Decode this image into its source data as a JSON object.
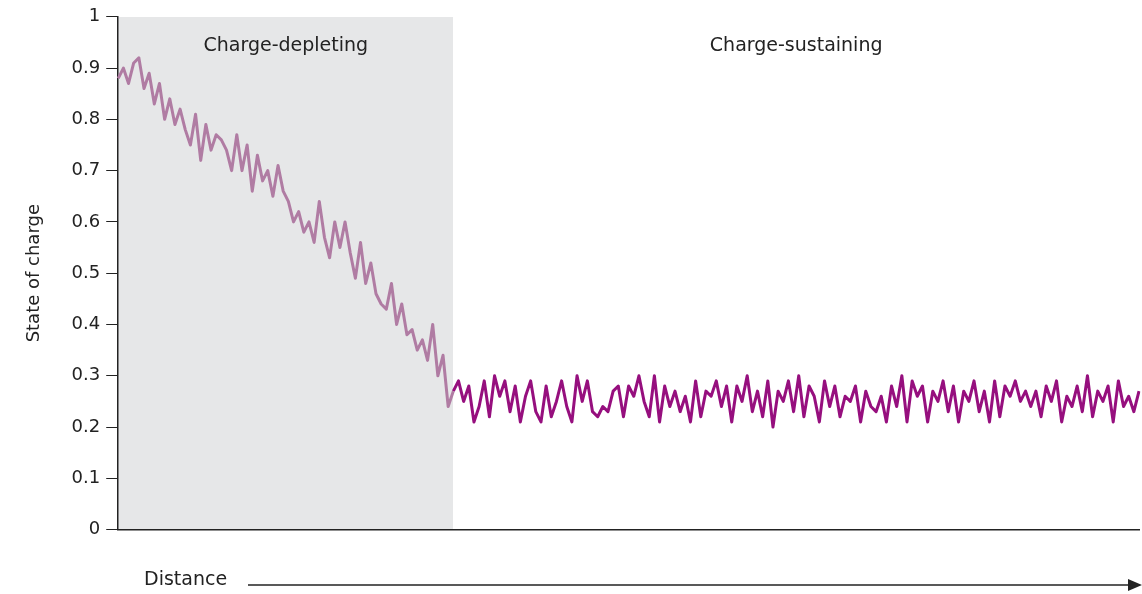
{
  "chart_data": {
    "type": "line",
    "ylabel": "State of charge",
    "xlabel": "Distance",
    "ylim": [
      0,
      1
    ],
    "yticks": [
      0,
      0.1,
      0.2,
      0.3,
      0.4,
      0.5,
      0.6,
      0.7,
      0.8,
      0.9,
      1
    ],
    "grid": false,
    "legend": false,
    "marker": "none",
    "line_style": "solid",
    "categories": [
      null,
      null,
      null,
      null,
      null,
      null,
      null,
      null,
      null,
      null,
      null,
      null,
      null,
      null,
      null,
      null,
      null,
      null,
      null,
      null,
      null,
      null,
      null,
      null,
      null,
      null,
      null,
      null,
      null,
      null,
      null,
      null,
      null,
      null,
      null,
      null,
      null,
      null,
      null,
      null,
      null,
      null,
      null,
      null,
      null,
      null,
      null,
      null,
      null,
      null,
      null,
      null,
      null,
      null,
      null,
      null,
      null,
      null,
      null,
      null,
      null,
      null,
      null,
      null,
      null,
      null,
      null,
      null,
      null,
      null,
      null,
      null,
      null,
      null,
      null,
      null,
      null,
      null,
      null,
      null,
      null,
      null,
      null,
      null,
      null,
      null,
      null,
      null,
      null,
      null,
      null,
      null,
      null,
      null,
      null,
      null,
      null,
      null,
      null,
      null,
      null,
      null,
      null,
      null,
      null,
      null,
      null,
      null,
      null,
      null,
      null,
      null,
      null,
      null,
      null,
      null,
      null,
      null,
      null,
      null,
      null,
      null,
      null,
      null,
      null,
      null,
      null,
      null,
      null,
      null,
      null,
      null,
      null,
      null,
      null,
      null,
      null,
      null,
      null,
      null,
      null,
      null,
      null,
      null,
      null,
      null,
      null,
      null,
      null,
      null,
      null,
      null,
      null,
      null,
      null,
      null,
      null,
      null,
      null,
      null,
      null,
      null,
      null,
      null,
      null,
      null,
      null,
      null,
      null,
      null,
      null,
      null,
      null,
      null,
      null,
      null,
      null,
      null,
      null,
      null,
      null,
      null,
      null,
      null,
      null,
      null,
      null,
      null,
      null,
      null,
      null,
      null,
      null,
      null,
      null,
      null,
      null,
      null,
      null
    ],
    "annotations": [
      "Charge-depleting",
      "Charge-sustaining"
    ],
    "series": [
      {
        "color": "#b07ca3",
        "values": [
          0.88,
          0.9,
          0.87,
          0.91,
          0.92,
          0.86,
          0.89,
          0.83,
          0.87,
          0.8,
          0.84,
          0.79,
          0.82,
          0.78,
          0.75,
          0.81,
          0.72,
          0.79,
          0.74,
          0.77,
          0.76,
          0.74,
          0.7,
          0.77,
          0.7,
          0.75,
          0.66,
          0.73,
          0.68,
          0.7,
          0.65,
          0.71,
          0.66,
          0.64,
          0.6,
          0.62,
          0.58,
          0.6,
          0.56,
          0.64,
          0.57,
          0.53,
          0.6,
          0.55,
          0.6,
          0.54,
          0.49,
          0.56,
          0.48,
          0.52,
          0.46,
          0.44,
          0.43,
          0.48,
          0.4,
          0.44,
          0.38,
          0.39,
          0.35,
          0.37,
          0.33,
          0.4,
          0.3,
          0.34,
          0.24,
          0.27,
          null,
          null,
          null,
          null,
          null,
          null,
          null,
          null,
          null,
          null,
          null,
          null,
          null,
          null,
          null,
          null,
          null,
          null,
          null,
          null,
          null,
          null,
          null,
          null,
          null,
          null,
          null,
          null,
          null,
          null,
          null,
          null,
          null,
          null,
          null,
          null,
          null,
          null,
          null,
          null,
          null,
          null,
          null,
          null,
          null,
          null,
          null,
          null,
          null,
          null,
          null,
          null,
          null,
          null,
          null,
          null,
          null,
          null,
          null,
          null,
          null,
          null,
          null,
          null,
          null,
          null,
          null,
          null,
          null,
          null,
          null,
          null,
          null,
          null,
          null,
          null,
          null,
          null,
          null,
          null,
          null,
          null,
          null,
          null,
          null,
          null,
          null,
          null,
          null,
          null,
          null,
          null,
          null,
          null,
          null,
          null,
          null,
          null,
          null,
          null,
          null,
          null,
          null,
          null,
          null,
          null,
          null,
          null,
          null,
          null,
          null,
          null,
          null,
          null,
          null,
          null,
          null,
          null,
          null,
          null,
          null,
          null,
          null,
          null,
          null,
          null,
          null,
          null,
          null,
          null,
          null,
          null,
          null
        ]
      },
      {
        "color": "#960f7e",
        "values": [
          null,
          null,
          null,
          null,
          null,
          null,
          null,
          null,
          null,
          null,
          null,
          null,
          null,
          null,
          null,
          null,
          null,
          null,
          null,
          null,
          null,
          null,
          null,
          null,
          null,
          null,
          null,
          null,
          null,
          null,
          null,
          null,
          null,
          null,
          null,
          null,
          null,
          null,
          null,
          null,
          null,
          null,
          null,
          null,
          null,
          null,
          null,
          null,
          null,
          null,
          null,
          null,
          null,
          null,
          null,
          null,
          null,
          null,
          null,
          null,
          null,
          null,
          null,
          null,
          null,
          0.27,
          0.29,
          0.25,
          0.28,
          0.21,
          0.24,
          0.29,
          0.22,
          0.3,
          0.26,
          0.29,
          0.23,
          0.28,
          0.21,
          0.26,
          0.29,
          0.23,
          0.21,
          0.28,
          0.22,
          0.25,
          0.29,
          0.24,
          0.21,
          0.3,
          0.25,
          0.29,
          0.23,
          0.22,
          0.24,
          0.23,
          0.27,
          0.28,
          0.22,
          0.28,
          0.26,
          0.3,
          0.25,
          0.22,
          0.3,
          0.21,
          0.28,
          0.24,
          0.27,
          0.23,
          0.26,
          0.21,
          0.29,
          0.22,
          0.27,
          0.26,
          0.29,
          0.24,
          0.28,
          0.21,
          0.28,
          0.25,
          0.3,
          0.23,
          0.27,
          0.22,
          0.29,
          0.2,
          0.27,
          0.25,
          0.29,
          0.23,
          0.3,
          0.22,
          0.28,
          0.26,
          0.21,
          0.29,
          0.24,
          0.28,
          0.22,
          0.26,
          0.25,
          0.28,
          0.21,
          0.27,
          0.24,
          0.23,
          0.26,
          0.21,
          0.28,
          0.24,
          0.3,
          0.21,
          0.29,
          0.26,
          0.28,
          0.21,
          0.27,
          0.25,
          0.29,
          0.23,
          0.28,
          0.21,
          0.27,
          0.25,
          0.29,
          0.23,
          0.27,
          0.21,
          0.29,
          0.22,
          0.28,
          0.26,
          0.29,
          0.25,
          0.27,
          0.24,
          0.27,
          0.22,
          0.28,
          0.25,
          0.29,
          0.21,
          0.26,
          0.24,
          0.28,
          0.23,
          0.3,
          0.22,
          0.27,
          0.25,
          0.28,
          0.21,
          0.29,
          0.24,
          0.26,
          0.23,
          0.27
        ]
      }
    ]
  }
}
